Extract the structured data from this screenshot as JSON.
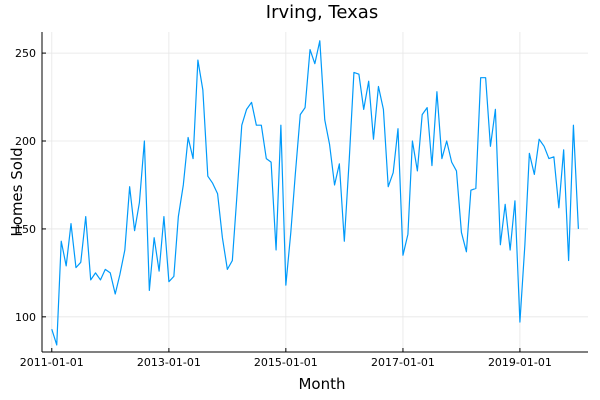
{
  "chart_data": {
    "type": "line",
    "title": "Irving, Texas",
    "xlabel": "Month",
    "ylabel": "Homes Sold",
    "x_start": "2011-01-01",
    "x_ticks": [
      "2011-01-01",
      "2013-01-01",
      "2015-01-01",
      "2017-01-01",
      "2019-01-01"
    ],
    "y_ticks": [
      100,
      150,
      200,
      250
    ],
    "xlim": [
      "2010-11-01",
      "2020-03-01"
    ],
    "ylim": [
      80,
      262
    ],
    "grid": true,
    "legend": "none",
    "color": "#009AFA",
    "series": [
      {
        "values": [
          93,
          84,
          143,
          129,
          153,
          128,
          131,
          157,
          121,
          125,
          121,
          127,
          125,
          113,
          124,
          138,
          174,
          149,
          165,
          200,
          115,
          145,
          126,
          157,
          120,
          123,
          157,
          175,
          202,
          190,
          246,
          229,
          180,
          176,
          170,
          145,
          127,
          132,
          168,
          209,
          218,
          222,
          209,
          209,
          190,
          188,
          138,
          209,
          118,
          148,
          181,
          215,
          219,
          252,
          244,
          257,
          212,
          198,
          175,
          187,
          143,
          190,
          239,
          238,
          218,
          234,
          201,
          231,
          218,
          174,
          182,
          207,
          135,
          147,
          200,
          183,
          215,
          219,
          186,
          228,
          190,
          200,
          188,
          183,
          148,
          137,
          172,
          173,
          236,
          236,
          197,
          218,
          141,
          164,
          138,
          166,
          97,
          141,
          193,
          181,
          201,
          197,
          190,
          191,
          162,
          195,
          132,
          209,
          150
        ]
      }
    ]
  }
}
